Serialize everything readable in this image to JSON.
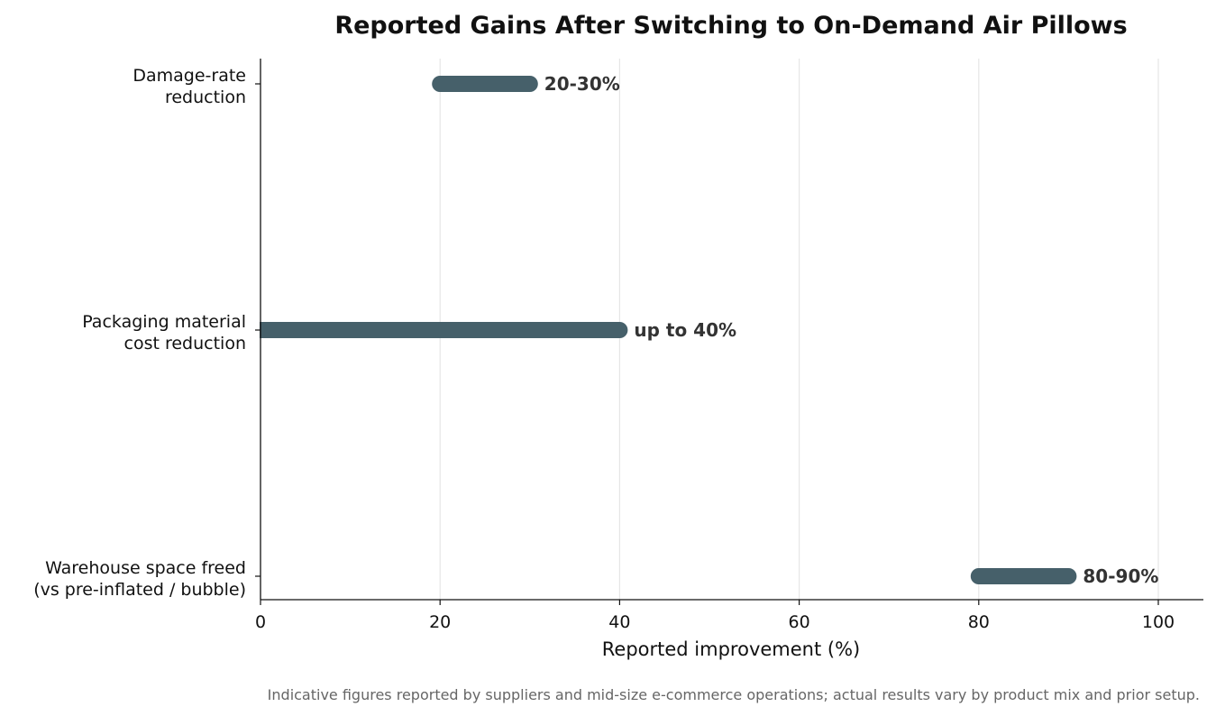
{
  "chart_data": {
    "type": "bar",
    "orientation": "horizontal-range",
    "title": "Reported Gains After Switching to On-Demand Air Pillows",
    "xlabel": "Reported improvement (%)",
    "ylabel": "",
    "xlim": [
      0,
      105
    ],
    "xticks": [
      0,
      20,
      40,
      60,
      80,
      100
    ],
    "grid": "vertical",
    "categories": [
      [
        "Damage-rate",
        "reduction"
      ],
      [
        "Packaging material",
        "cost reduction"
      ],
      [
        "Warehouse space freed",
        "(vs pre-inflated / bubble)"
      ]
    ],
    "ranges": [
      {
        "low": 20,
        "high": 30,
        "label": "20-30%"
      },
      {
        "low": 0,
        "high": 40,
        "label": "up to 40%"
      },
      {
        "low": 80,
        "high": 90,
        "label": "80-90%"
      }
    ],
    "bar_color": "#46606a",
    "gridline_color": "#e6e6e6"
  },
  "footnote": "Indicative figures reported by suppliers and mid-size e-commerce operations; actual results vary by product mix and prior setup."
}
